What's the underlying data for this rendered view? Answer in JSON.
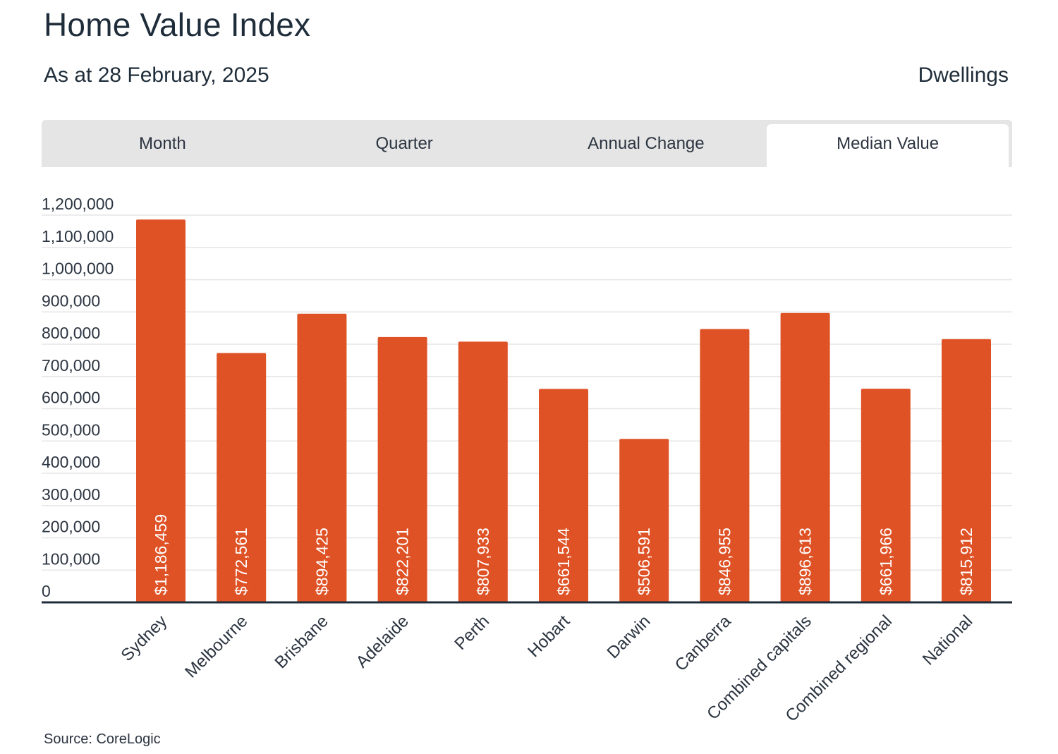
{
  "header": {
    "title": "Home Value Index",
    "subtitle": "As at 28 February, 2025",
    "segment": "Dwellings"
  },
  "tabs": [
    {
      "label": "Month",
      "active": false
    },
    {
      "label": "Quarter",
      "active": false
    },
    {
      "label": "Annual Change",
      "active": false
    },
    {
      "label": "Median Value",
      "active": true
    }
  ],
  "footer": {
    "source": "Source: CoreLogic"
  },
  "colors": {
    "bar": "#de5226",
    "grid": "#e6e6e6",
    "axis": "#1f2d3a"
  },
  "chart_data": {
    "type": "bar",
    "title": "",
    "xlabel": "",
    "ylabel": "",
    "ylim": [
      0,
      1200000
    ],
    "y_ticks": [
      0,
      100000,
      200000,
      300000,
      400000,
      500000,
      600000,
      700000,
      800000,
      900000,
      1000000,
      1100000,
      1200000
    ],
    "y_tick_labels": [
      "0",
      "100,000",
      "200,000",
      "300,000",
      "400,000",
      "500,000",
      "600,000",
      "700,000",
      "800,000",
      "900,000",
      "1,000,000",
      "1,100,000",
      "1,200,000"
    ],
    "categories": [
      "Sydney",
      "Melbourne",
      "Brisbane",
      "Adelaide",
      "Perth",
      "Hobart",
      "Darwin",
      "Canberra",
      "Combined capitals",
      "Combined regional",
      "National"
    ],
    "values": [
      1186459,
      772561,
      894425,
      822201,
      807933,
      661544,
      506591,
      846955,
      896613,
      661966,
      815912
    ],
    "data_labels": [
      "$1,186,459",
      "$772,561",
      "$894,425",
      "$822,201",
      "$807,933",
      "$661,544",
      "$506,591",
      "$846,955",
      "$896,613",
      "$661,966",
      "$815,912"
    ],
    "grid": true,
    "legend": "none"
  }
}
